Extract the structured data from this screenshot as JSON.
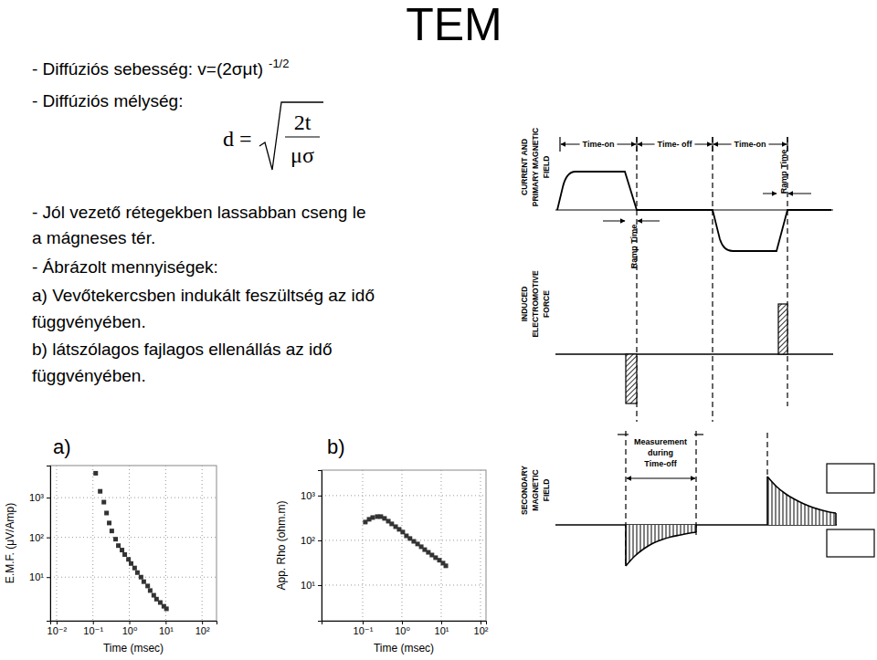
{
  "title": "TEM",
  "text_lines": [
    {
      "text": "- Diffúziós sebesség: v=(2σμt)",
      "sup": "-1/2"
    },
    {
      "text": "- Diffúziós mélység:"
    },
    {
      "text": "- Jól vezető rétegekben lassabban cseng le"
    },
    {
      "text": "a mágneses tér."
    },
    {
      "text": "- Ábrázolt mennyiségek:"
    },
    {
      "text": "a) Vevőtekercsben indukált feszültség az idő"
    },
    {
      "text": "függvényében."
    },
    {
      "text": "b) látszólagos fajlagos ellenállás az idő"
    },
    {
      "text": "függvényében."
    }
  ],
  "formula": {
    "lhs": "d",
    "eq": "=",
    "numerator": "2t",
    "denominator": "μσ"
  },
  "chart_data": [
    {
      "type": "scatter",
      "title": "a)",
      "x_label": "Time (msec)",
      "y_label": "E.M.F. (μV/Amp)",
      "log": true,
      "grid": true,
      "marker": "square",
      "color": "#333333",
      "xlim": [
        0.0067,
        250
      ],
      "ylim": [
        0.8,
        6400
      ],
      "xticks": [
        {
          "value": 0.01,
          "label": "10⁻²"
        },
        {
          "value": 0.1,
          "label": "10⁻¹"
        },
        {
          "value": 1,
          "label": "10⁰"
        },
        {
          "value": 10,
          "label": "10¹"
        },
        {
          "value": 100,
          "label": "10²"
        }
      ],
      "yticks": [
        {
          "value": 10,
          "label": "10¹"
        },
        {
          "value": 100,
          "label": "10²"
        },
        {
          "value": 1000,
          "label": "10³"
        }
      ],
      "x": [
        0.119,
        0.158,
        0.2,
        0.237,
        0.28,
        0.33,
        0.42,
        0.5,
        0.63,
        0.75,
        0.95,
        1.12,
        1.4,
        1.67,
        2.1,
        2.5,
        3.2,
        3.75,
        4.7,
        5.6,
        7.1,
        8.9,
        10.5
      ],
      "values": [
        4100,
        1440,
        770,
        410,
        230,
        145,
        90,
        62,
        48,
        37,
        28,
        22,
        17,
        13,
        10,
        7.7,
        6,
        4.6,
        3.5,
        2.8,
        2.3,
        1.85,
        1.6
      ]
    },
    {
      "type": "scatter",
      "title": "b)",
      "x_label": "Time (msec)",
      "y_label": "App. Rho (ohm.m)",
      "log": true,
      "grid": true,
      "marker": "square",
      "color": "#333333",
      "xlim": [
        0.009,
        138
      ],
      "ylim": [
        1.6,
        3700
      ],
      "xticks": [
        {
          "value": 0.1,
          "label": "10⁻¹"
        },
        {
          "value": 1,
          "label": "10⁰"
        },
        {
          "value": 10,
          "label": "10¹"
        },
        {
          "value": 100,
          "label": "10²"
        }
      ],
      "yticks": [
        {
          "value": 10,
          "label": "10¹"
        },
        {
          "value": 100,
          "label": "10²"
        },
        {
          "value": 1000,
          "label": "10³"
        }
      ],
      "x": [
        0.117,
        0.146,
        0.18,
        0.235,
        0.29,
        0.36,
        0.45,
        0.55,
        0.69,
        0.85,
        1.05,
        1.3,
        1.6,
        2.0,
        2.5,
        3.1,
        3.8,
        4.7,
        5.8,
        7.2,
        9.0,
        11.1,
        13.1
      ],
      "values": [
        256,
        295,
        323,
        339,
        339,
        309,
        268,
        233,
        202,
        176,
        153,
        126,
        110,
        95,
        83,
        72,
        62,
        54,
        47,
        41,
        36,
        31,
        27
      ]
    }
  ],
  "diagram": {
    "panels": [
      {
        "label": [
          "CURRENT AND",
          "PRIMARY MAGNETIC",
          "FIELD"
        ]
      },
      {
        "label": [
          "INDUCED",
          "ELECTROMOTIVE",
          "FORCE"
        ]
      },
      {
        "label": [
          "SECONDARY",
          "MAGNETIC",
          "FIELD"
        ]
      }
    ],
    "intervals": [
      "Time-on",
      "Time- off",
      "Time-on"
    ],
    "ramp_time": [
      "Ramp Time",
      "Ramp Time"
    ],
    "measurement": [
      "Measurement",
      "during",
      "Time-off"
    ]
  }
}
